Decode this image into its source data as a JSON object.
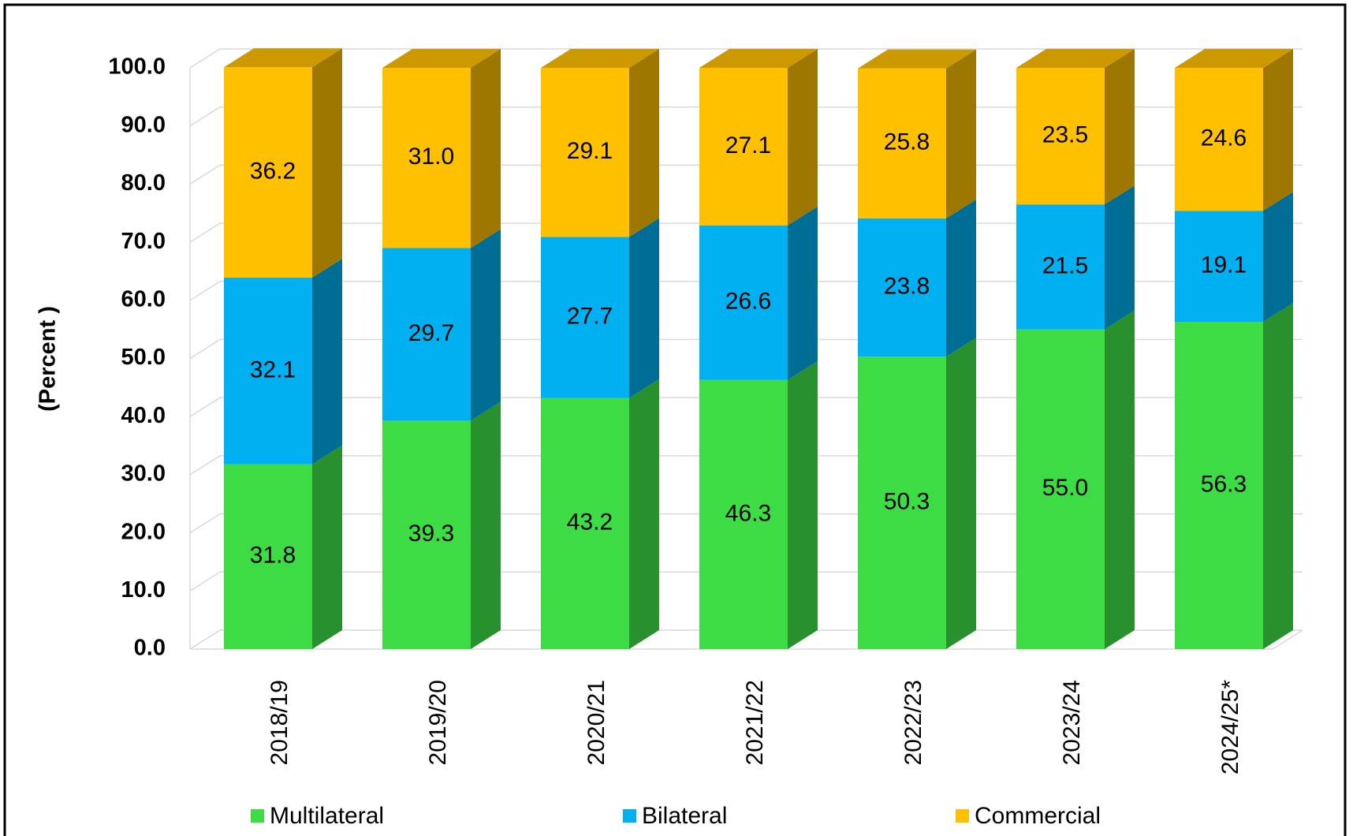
{
  "chart_data": {
    "type": "stacked_bar_3d",
    "y_label": "(Percent )",
    "categories": [
      "2018/19",
      "2019/20",
      "2020/21",
      "2021/22",
      "2022/23",
      "2023/24",
      "2024/25*"
    ],
    "series": [
      {
        "name": "Multilateral",
        "color": "#3ddc44",
        "values": [
          31.8,
          39.3,
          43.2,
          46.3,
          50.3,
          55.0,
          56.3
        ],
        "value_labels": [
          "31.8",
          "39.3",
          "43.2",
          "46.3",
          "50.3",
          "55.0",
          "56.3"
        ]
      },
      {
        "name": "Bilateral",
        "color": "#00b0f0",
        "values": [
          32.1,
          29.7,
          27.7,
          26.6,
          23.8,
          21.5,
          19.1
        ],
        "value_labels": [
          "32.1",
          "29.7",
          "27.7",
          "26.6",
          "23.8",
          "21.5",
          "19.1"
        ]
      },
      {
        "name": "Commercial",
        "color": "#ffc000",
        "values": [
          36.2,
          31.0,
          29.1,
          27.1,
          25.8,
          23.5,
          24.6
        ],
        "value_labels": [
          "36.2",
          "31.0",
          "29.1",
          "27.1",
          "25.8",
          "23.5",
          "24.6"
        ]
      }
    ],
    "ylim": [
      0,
      100
    ],
    "yticks": [
      {
        "value": 0,
        "label": "0.0"
      },
      {
        "value": 10,
        "label": "10.0"
      },
      {
        "value": 20,
        "label": "20.0"
      },
      {
        "value": 30,
        "label": "30.0"
      },
      {
        "value": 40,
        "label": "40.0"
      },
      {
        "value": 50,
        "label": "50.0"
      },
      {
        "value": 60,
        "label": "60.0"
      },
      {
        "value": 70,
        "label": "70.0"
      },
      {
        "value": 80,
        "label": "80.0"
      },
      {
        "value": 90,
        "label": "90.0"
      },
      {
        "value": 100,
        "label": "100.0"
      }
    ],
    "grid": true,
    "legend": "bottom"
  }
}
